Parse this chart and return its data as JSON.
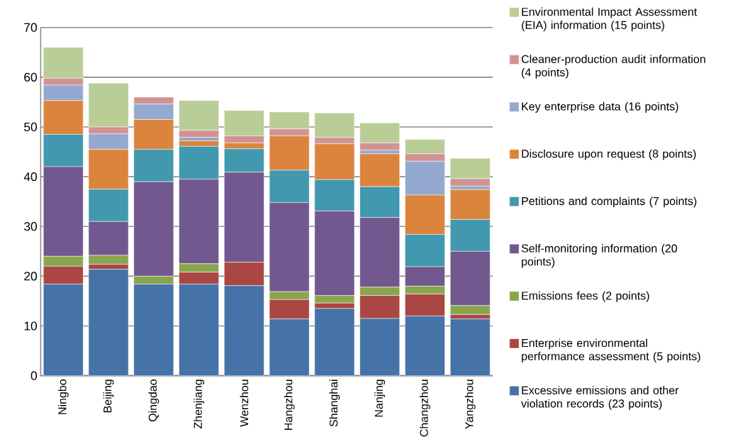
{
  "chart_data": {
    "type": "bar",
    "stacked": true,
    "categories": [
      "Ningbo",
      "Beijing",
      "Qingdao",
      "Zhenjiang",
      "Wenzhou",
      "Hangzhou",
      "Shanghai",
      "Nanjing",
      "Changzhou",
      "Yangzhou"
    ],
    "series": [
      {
        "name": "Excessive emissions and other violation records (23 points)",
        "color": "#4572a7",
        "values": [
          18.4,
          21.4,
          18.4,
          18.4,
          18.1,
          11.4,
          13.5,
          11.5,
          12.0,
          11.4
        ]
      },
      {
        "name": "Enterprise environmental performance assessment (5 points)",
        "color": "#aa4643",
        "values": [
          3.6,
          1.0,
          0,
          2.4,
          4.7,
          3.9,
          1.1,
          4.6,
          4.4,
          0.9
        ]
      },
      {
        "name": "Emissions fees (2 points)",
        "color": "#89a54e",
        "values": [
          2.0,
          1.8,
          1.6,
          1.7,
          0,
          1.6,
          1.5,
          1.7,
          1.6,
          1.8
        ]
      },
      {
        "name": "Self-monitoring information (20 points)",
        "color": "#71588f",
        "values": [
          18.0,
          6.8,
          19.0,
          17.0,
          18.1,
          17.9,
          17.0,
          14.0,
          3.9,
          10.9
        ]
      },
      {
        "name": "Petitions and complaints (7 points)",
        "color": "#4198af",
        "values": [
          6.5,
          6.5,
          6.5,
          6.6,
          4.7,
          6.5,
          6.3,
          6.2,
          6.5,
          6.4
        ]
      },
      {
        "name": "Disclosure upon request (8 points)",
        "color": "#db843d",
        "values": [
          6.8,
          8.0,
          6.0,
          1.1,
          1.2,
          6.9,
          7.2,
          6.6,
          7.9,
          6.0
        ]
      },
      {
        "name": "Key enterprise data (16 points)",
        "color": "#93a9cf",
        "values": [
          3.1,
          3.1,
          3.1,
          0.7,
          0,
          0,
          0,
          0.7,
          6.8,
          0.7
        ]
      },
      {
        "name": "Cleaner-production audit information (4 points)",
        "color": "#d19392",
        "values": [
          1.4,
          1.4,
          1.4,
          1.4,
          1.4,
          1.4,
          1.3,
          1.5,
          1.5,
          1.5
        ]
      },
      {
        "name": "Environmental Impact Assessment (EIA) information (15 points)",
        "color": "#b9cd96",
        "values": [
          6.2,
          8.8,
          0,
          6.0,
          5.1,
          3.4,
          4.9,
          4.0,
          2.9,
          4.1
        ]
      }
    ],
    "ylim": [
      0,
      70
    ],
    "yticks": [
      0,
      10,
      20,
      30,
      40,
      50,
      60,
      70
    ],
    "grid": "y",
    "legend": "right"
  }
}
